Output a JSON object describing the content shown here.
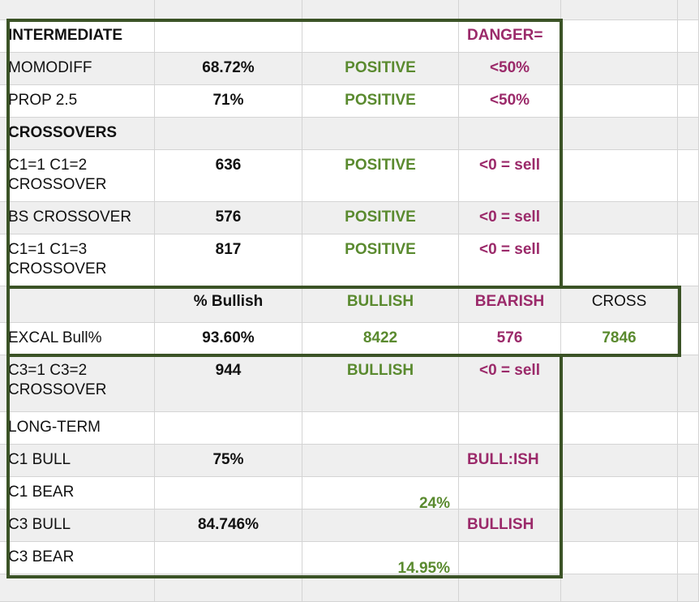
{
  "colors": {
    "positive_green": "#5a8a2f",
    "danger_magenta": "#9b2a6a",
    "frame_green": "#3b5326",
    "row_shade": "#efefef",
    "grid_line": "#d4d4d4"
  },
  "rows": [
    {
      "a": "INTERMEDIATE",
      "b": "",
      "c": "",
      "d": "DANGER=",
      "e": ""
    },
    {
      "a": "MOMODIFF",
      "b": "68.72%",
      "c": "POSITIVE",
      "d": "<50%",
      "e": ""
    },
    {
      "a": "PROP 2.5",
      "b": "71%",
      "c": "POSITIVE",
      "d": "<50%",
      "e": ""
    },
    {
      "a": "CROSSOVERS",
      "b": "",
      "c": "",
      "d": "",
      "e": ""
    },
    {
      "a": "C1=1 C1=2\nCROSSOVER",
      "b": "636",
      "c": "POSITIVE",
      "d": "<0 = sell",
      "e": ""
    },
    {
      "a": "BS CROSSOVER",
      "b": "576",
      "c": "POSITIVE",
      "d": "<0 = sell",
      "e": ""
    },
    {
      "a": "C1=1 C1=3\nCROSSOVER",
      "b": "817",
      "c": "POSITIVE",
      "d": "<0 = sell",
      "e": ""
    },
    {
      "a": "",
      "b": "% Bullish",
      "c": "BULLISH",
      "d": "BEARISH",
      "e": "CROSS"
    },
    {
      "a": "EXCAL Bull%",
      "b": "93.60%",
      "c": "8422",
      "d": "576",
      "e": "7846"
    },
    {
      "a": "C3=1 C3=2\nCROSSOVER",
      "b": "944",
      "c": "BULLISH",
      "d": "<0 = sell",
      "e": ""
    },
    {
      "a": "LONG-TERM",
      "b": "",
      "c": "",
      "d": "",
      "e": ""
    },
    {
      "a": "C1 BULL",
      "b": "75%",
      "c": "",
      "d": "BULL:ISH",
      "e": ""
    },
    {
      "a": "C1 BEAR",
      "b": "",
      "c": "24%",
      "d": "",
      "e": ""
    },
    {
      "a": "C3 BULL",
      "b": "84.746%",
      "c": "",
      "d": "BULLISH",
      "e": ""
    },
    {
      "a": "C3 BEAR",
      "b": "",
      "c": "14.95%",
      "d": "",
      "e": ""
    }
  ]
}
